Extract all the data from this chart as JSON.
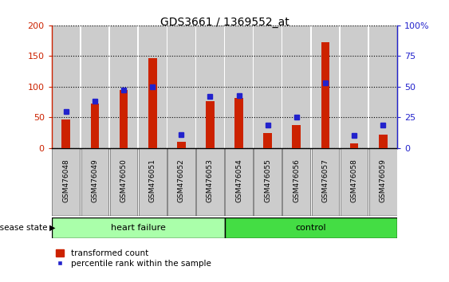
{
  "title": "GDS3661 / 1369552_at",
  "categories": [
    "GSM476048",
    "GSM476049",
    "GSM476050",
    "GSM476051",
    "GSM476052",
    "GSM476053",
    "GSM476054",
    "GSM476055",
    "GSM476056",
    "GSM476057",
    "GSM476058",
    "GSM476059"
  ],
  "red_values": [
    47,
    73,
    95,
    146,
    10,
    77,
    82,
    24,
    38,
    173,
    8,
    22
  ],
  "blue_values_pct": [
    30,
    38,
    47,
    50,
    11,
    42,
    43,
    19,
    25,
    53,
    10,
    19
  ],
  "left_ylim": [
    0,
    200
  ],
  "right_ylim": [
    0,
    100
  ],
  "left_yticks": [
    0,
    50,
    100,
    150,
    200
  ],
  "right_yticks": [
    0,
    25,
    50,
    75,
    100
  ],
  "right_yticklabels": [
    "0",
    "25",
    "50",
    "75",
    "100%"
  ],
  "red_color": "#cc2200",
  "blue_color": "#2222cc",
  "bar_bg_color": "#cccccc",
  "heart_failure_color": "#aaffaa",
  "control_color": "#44dd44",
  "heart_failure_label": "heart failure",
  "control_label": "control",
  "disease_state_label": "disease state",
  "legend_red_label": "transformed count",
  "legend_blue_label": "percentile rank within the sample",
  "heart_failure_count": 6,
  "control_count": 6,
  "fig_width": 5.63,
  "fig_height": 3.54,
  "dpi": 100
}
